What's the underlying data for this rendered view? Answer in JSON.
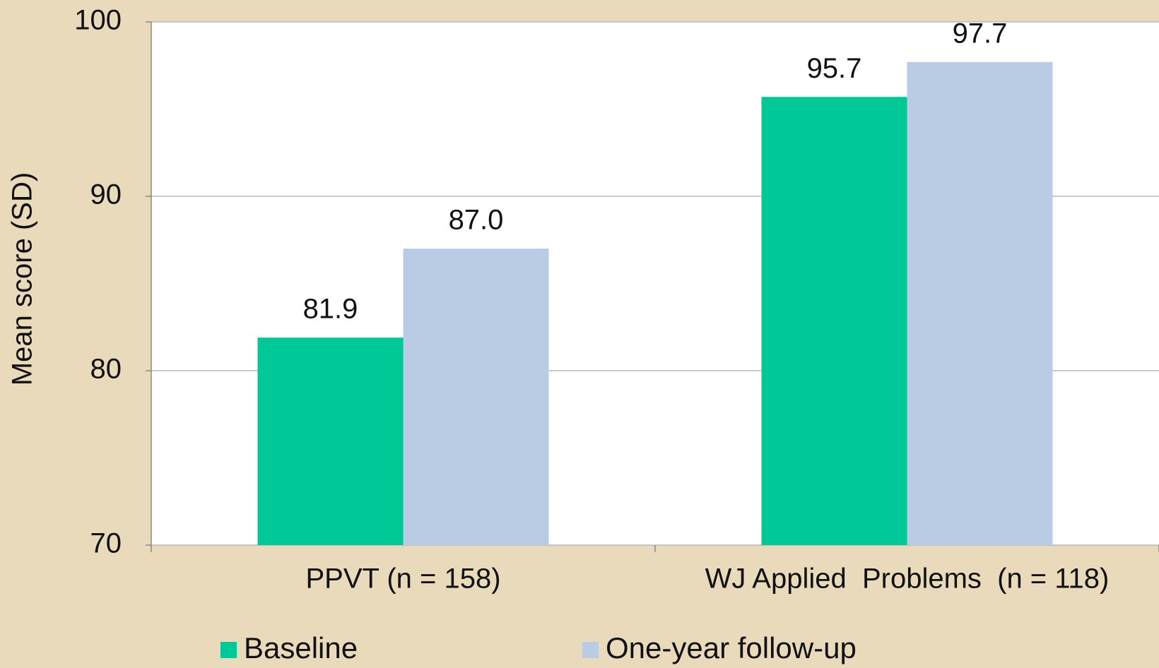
{
  "chart_data": {
    "type": "bar",
    "y_label": "Mean score (SD)",
    "categories": [
      "PPVT (n = 158)",
      "WJ Applied  Problems  (n = 118)"
    ],
    "series": [
      {
        "name": "Baseline",
        "color": "#00c896",
        "values": [
          81.9,
          95.7
        ],
        "value_labels": [
          "81.9",
          "95.7"
        ]
      },
      {
        "name": "One-year follow-up",
        "color": "#b9cce4",
        "values": [
          87.0,
          97.7
        ],
        "value_labels": [
          "87.0",
          "97.7"
        ]
      }
    ],
    "ylim": [
      70,
      100
    ],
    "yticks": [
      70,
      80,
      90,
      100
    ],
    "grid": true,
    "legend": "bottom"
  }
}
